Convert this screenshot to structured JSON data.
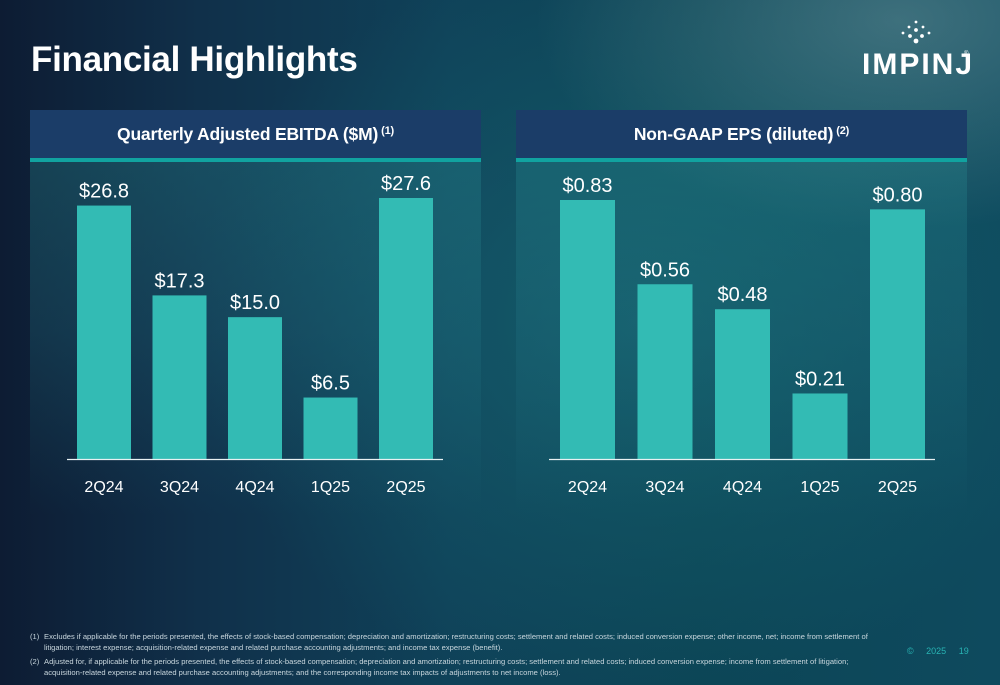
{
  "page": {
    "title": "Financial Highlights",
    "logo_text": "IMPINJ",
    "logo_reg": "®"
  },
  "panels": {
    "left": {
      "title": "Quarterly Adjusted EBITDA ($M)",
      "footnote_ref": "(1)"
    },
    "right": {
      "title": "Non-GAAP EPS (diluted)",
      "footnote_ref": "(2)"
    }
  },
  "chart_data": [
    {
      "type": "bar",
      "title": "Quarterly Adjusted EBITDA ($M)",
      "categories": [
        "2Q24",
        "3Q24",
        "4Q24",
        "1Q25",
        "2Q25"
      ],
      "values": [
        26.8,
        17.3,
        15.0,
        6.5,
        27.6
      ],
      "data_labels": [
        "$26.8",
        "$17.3",
        "$15.0",
        "$6.5",
        "$27.6"
      ],
      "xlabel": "",
      "ylabel": "",
      "ylim": [
        0,
        28.8
      ],
      "grid": false,
      "legend": "none",
      "bar_color": "#33bbb4"
    },
    {
      "type": "bar",
      "title": "Non-GAAP EPS (diluted)",
      "categories": [
        "2Q24",
        "3Q24",
        "4Q24",
        "1Q25",
        "2Q25"
      ],
      "values": [
        0.83,
        0.56,
        0.48,
        0.21,
        0.8
      ],
      "data_labels": [
        "$0.83",
        "$0.56",
        "$0.48",
        "$0.21",
        "$0.80"
      ],
      "xlabel": "",
      "ylabel": "",
      "ylim": [
        0,
        0.88
      ],
      "grid": false,
      "legend": "none",
      "bar_color": "#33bbb4"
    }
  ],
  "footnotes": [
    {
      "num": "(1)",
      "text": "Excludes if applicable for the periods presented, the effects of stock-based compensation; depreciation and amortization; restructuring costs; settlement and related costs; induced conversion expense; other income, net; income from settlement of litigation; interest expense; acquisition-related expense and related purchase accounting adjustments; and income tax expense (benefit)."
    },
    {
      "num": "(2)",
      "text": "Adjusted for, if applicable for the periods presented, the effects of stock-based compensation; depreciation and amortization; restructuring costs; settlement and related costs; induced conversion expense; income from settlement of litigation; acquisition-related expense and related purchase accounting adjustments; and the corresponding income tax impacts of adjustments to net income (loss)."
    }
  ],
  "footer": {
    "copyright": "©",
    "year": "2025",
    "page_number": "19"
  },
  "colors": {
    "bar": "#33bbb4",
    "header": "#1b3d68",
    "accent": "#11a3a0"
  }
}
